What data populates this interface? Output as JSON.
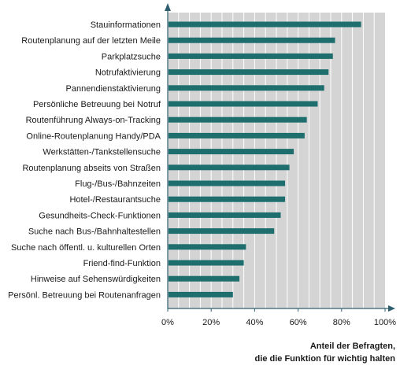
{
  "chart_data": {
    "type": "bar",
    "orientation": "horizontal",
    "categories": [
      "Stauinformationen",
      "Routenplanung auf der letzten Meile",
      "Parkplatzsuche",
      "Notrufaktivierung",
      "Pannendienstaktivierung",
      "Persönliche Betreuung bei Notruf",
      "Routenführung Always-on-Tracking",
      "Online-Routenplanung Handy/PDA",
      "Werkstätten-/Tankstellensuche",
      "Routenplanung abseits von Straßen",
      "Flug-/Bus-/Bahnzeiten",
      "Hotel-/Restaurantsuche",
      "Gesundheits-Check-Funktionen",
      "Suche nach Bus-/Bahnhaltestellen",
      "Suche nach öffentl. u. kulturellen Orten",
      "Friend-find-Funktion",
      "Hinweise auf Sehenswürdigkeiten",
      "Persönl. Betreuung bei Routenanfragen"
    ],
    "values": [
      89,
      77,
      76,
      74,
      72,
      69,
      64,
      63,
      58,
      56,
      54,
      54,
      52,
      49,
      36,
      35,
      33,
      30
    ],
    "xlim": [
      0,
      100
    ],
    "x_ticks": [
      "0%",
      "20%",
      "40%",
      "60%",
      "80%",
      "100%"
    ],
    "xlabel_lines": [
      "Anteil der Befragten,",
      "die die Funktion für wichtig halten"
    ],
    "grid": true,
    "bar_color": "#1e6e6e",
    "plot_background": "#d4d4d4",
    "grid_color": "#ffffff",
    "axis_color": "#2f5f6f"
  }
}
